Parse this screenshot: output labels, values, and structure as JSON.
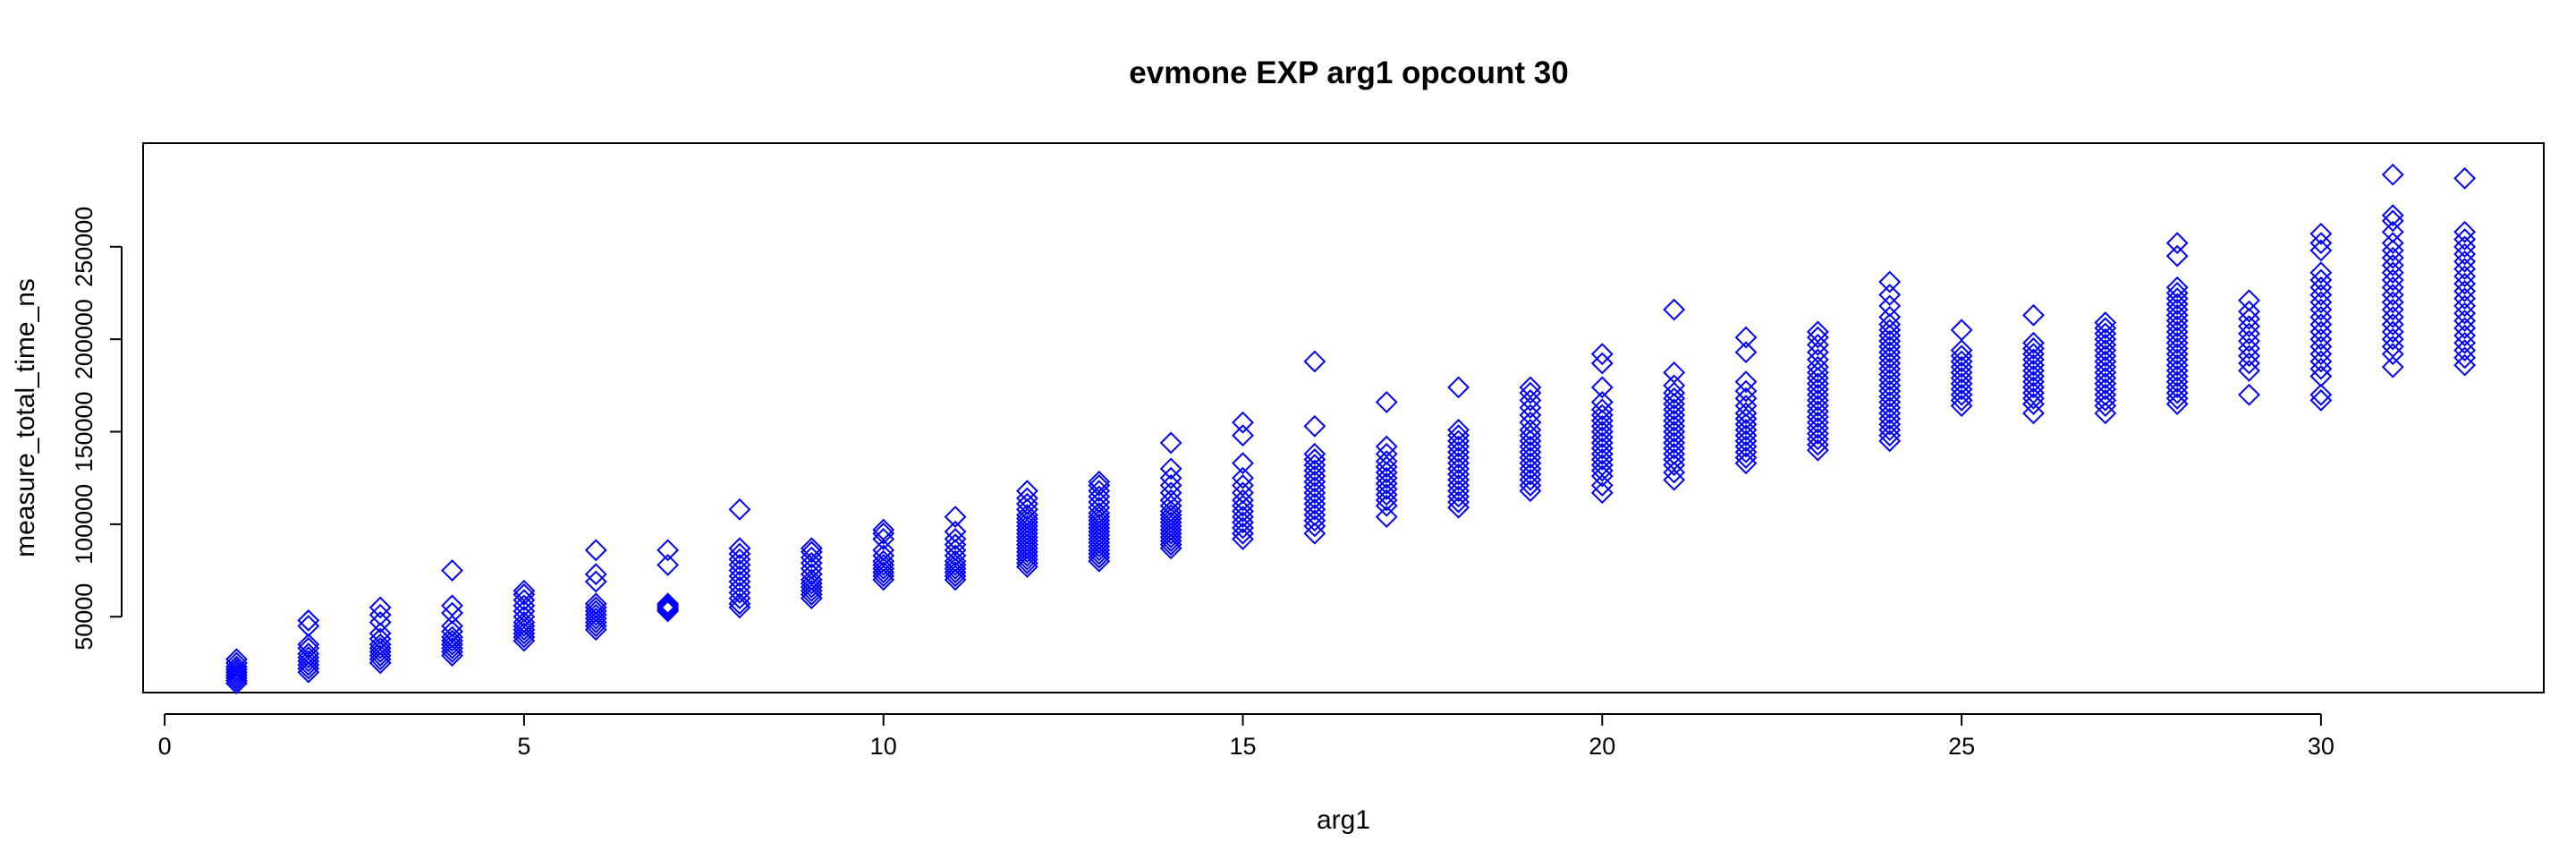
{
  "chart_data": {
    "type": "scatter",
    "title": "evmone EXP arg1 opcount 30",
    "xlabel": "arg1",
    "ylabel": "measure_total_time_ns",
    "xlim": [
      -0.3,
      33.1
    ],
    "ylim": [
      9000,
      306000
    ],
    "x_ticks": [
      0,
      5,
      10,
      15,
      20,
      25,
      30
    ],
    "y_ticks": [
      50000,
      100000,
      150000,
      200000,
      250000
    ],
    "x_tick_labels": [
      "0",
      "5",
      "10",
      "15",
      "20",
      "25",
      "30"
    ],
    "y_tick_labels": [
      "50000",
      "100000",
      "150000",
      "200000",
      "250000"
    ],
    "grid": false,
    "legend": "none",
    "marker": "diamond",
    "color": "#0000FF",
    "series": [
      {
        "x": [
          1,
          2,
          3,
          4,
          5,
          6,
          7,
          8,
          9,
          10,
          11,
          12,
          13,
          14,
          15,
          16,
          17,
          18,
          19,
          20,
          21,
          22,
          23,
          24,
          25,
          26,
          27,
          28,
          29,
          30,
          31,
          32
        ],
        "points": [
          {
            "x": 1,
            "y": [
              14000,
              15500,
              17000,
              18500,
              20000,
              21500,
              23000,
              25000,
              27000
            ]
          },
          {
            "x": 2,
            "y": [
              20000,
              22000,
              24000,
              26000,
              28000,
              30000,
              33000,
              35000,
              45000,
              48000
            ]
          },
          {
            "x": 3,
            "y": [
              25000,
              27000,
              29000,
              31000,
              33000,
              35000,
              38000,
              41000,
              47000,
              51000,
              55000
            ]
          },
          {
            "x": 4,
            "y": [
              29000,
              31000,
              33000,
              35000,
              37000,
              39000,
              42000,
              45000,
              52000,
              56000,
              75000
            ]
          },
          {
            "x": 5,
            "y": [
              37000,
              39000,
              41000,
              43000,
              45000,
              47000,
              50000,
              53000,
              56000,
              59000,
              62000,
              64000
            ]
          },
          {
            "x": 6,
            "y": [
              43000,
              45000,
              47000,
              49000,
              51000,
              53000,
              55000,
              57000,
              69000,
              73000,
              86000
            ]
          },
          {
            "x": 7,
            "y": [
              53000,
              54000,
              55000,
              56000,
              57000,
              78000,
              86000
            ]
          },
          {
            "x": 8,
            "y": [
              55000,
              57000,
              60000,
              63000,
              66000,
              69000,
              72000,
              75000,
              78000,
              81000,
              84000,
              87000,
              108000
            ]
          },
          {
            "x": 9,
            "y": [
              60000,
              62000,
              64000,
              66000,
              68000,
              70000,
              73000,
              76000,
              79000,
              82000,
              85000,
              87000
            ]
          },
          {
            "x": 10,
            "y": [
              70000,
              72000,
              74000,
              76000,
              78000,
              80000,
              83000,
              86000,
              92000,
              95000,
              97000
            ]
          },
          {
            "x": 11,
            "y": [
              70000,
              72000,
              74000,
              76000,
              78000,
              80000,
              83000,
              86000,
              89000,
              92000,
              96000,
              104000
            ]
          },
          {
            "x": 12,
            "y": [
              77000,
              79000,
              81000,
              83000,
              85000,
              87000,
              89000,
              91000,
              93000,
              95000,
              97000,
              99000,
              101000,
              103000,
              105000,
              108000,
              111000,
              114000,
              118000
            ]
          },
          {
            "x": 13,
            "y": [
              80000,
              82000,
              84000,
              86000,
              88000,
              90000,
              92000,
              94000,
              96000,
              98000,
              100000,
              102000,
              104000,
              106000,
              109000,
              112000,
              115000,
              118000,
              121000,
              123000
            ]
          },
          {
            "x": 14,
            "y": [
              87000,
              89000,
              91000,
              93000,
              95000,
              97000,
              99000,
              101000,
              103000,
              105000,
              107000,
              110000,
              113000,
              117000,
              121000,
              125000,
              130000,
              144000
            ]
          },
          {
            "x": 15,
            "y": [
              92000,
              95000,
              98000,
              101000,
              104000,
              107000,
              110000,
              113000,
              117000,
              121000,
              125000,
              133000,
              148000,
              155000
            ]
          },
          {
            "x": 16,
            "y": [
              95000,
              99000,
              102000,
              105000,
              108000,
              111000,
              114000,
              117000,
              120000,
              123000,
              126000,
              129000,
              132000,
              135000,
              138000,
              153000,
              188000
            ]
          },
          {
            "x": 17,
            "y": [
              104000,
              110000,
              113000,
              116000,
              119000,
              122000,
              125000,
              128000,
              131000,
              134000,
              138000,
              142000,
              166000
            ]
          },
          {
            "x": 18,
            "y": [
              109000,
              112000,
              115000,
              118000,
              121000,
              124000,
              127000,
              130000,
              133000,
              136000,
              139000,
              142000,
              145000,
              148000,
              151000,
              174000
            ]
          },
          {
            "x": 19,
            "y": [
              118000,
              121000,
              124000,
              127000,
              130000,
              133000,
              136000,
              139000,
              142000,
              145000,
              148000,
              151000,
              155000,
              159000,
              163000,
              167000,
              171000,
              174000
            ]
          },
          {
            "x": 20,
            "y": [
              117000,
              121000,
              126000,
              129000,
              132000,
              135000,
              138000,
              141000,
              144000,
              147000,
              150000,
              153000,
              156000,
              159000,
              162000,
              166000,
              174000,
              187000,
              192000
            ]
          },
          {
            "x": 21,
            "y": [
              124000,
              128000,
              132000,
              135000,
              138000,
              141000,
              144000,
              147000,
              150000,
              153000,
              156000,
              159000,
              162000,
              165000,
              168000,
              171000,
              175000,
              182000,
              216000
            ]
          },
          {
            "x": 22,
            "y": [
              133000,
              136000,
              139000,
              142000,
              145000,
              148000,
              151000,
              154000,
              157000,
              160000,
              164000,
              168000,
              172000,
              177000,
              193000,
              201000
            ]
          },
          {
            "x": 23,
            "y": [
              140000,
              143000,
              146000,
              149000,
              152000,
              155000,
              158000,
              161000,
              164000,
              167000,
              170000,
              173000,
              176000,
              179000,
              182000,
              185000,
              189000,
              193000,
              197000,
              201000,
              204000
            ]
          },
          {
            "x": 24,
            "y": [
              145000,
              148000,
              151000,
              154000,
              157000,
              160000,
              163000,
              166000,
              169000,
              172000,
              175000,
              178000,
              181000,
              184000,
              187000,
              190000,
              193000,
              196000,
              199000,
              202000,
              205000,
              208000,
              212000,
              218000,
              224000,
              231000
            ]
          },
          {
            "x": 25,
            "y": [
              164000,
              167000,
              170000,
              173000,
              176000,
              179000,
              182000,
              185000,
              188000,
              191000,
              194000,
              205000
            ]
          },
          {
            "x": 26,
            "y": [
              160000,
              165000,
              168000,
              171000,
              174000,
              177000,
              180000,
              183000,
              186000,
              189000,
              192000,
              195000,
              198000,
              213000
            ]
          },
          {
            "x": 27,
            "y": [
              160000,
              164000,
              167000,
              170000,
              173000,
              176000,
              179000,
              182000,
              185000,
              188000,
              191000,
              194000,
              197000,
              200000,
              203000,
              206000,
              209000
            ]
          },
          {
            "x": 28,
            "y": [
              165000,
              168000,
              171000,
              174000,
              177000,
              180000,
              183000,
              186000,
              189000,
              192000,
              195000,
              198000,
              201000,
              204000,
              207000,
              210000,
              213000,
              216000,
              219000,
              222000,
              225000,
              228000,
              245000,
              252000
            ]
          },
          {
            "x": 29,
            "y": [
              170000,
              183000,
              187000,
              191000,
              195000,
              199000,
              203000,
              207000,
              211000,
              215000,
              221000
            ]
          },
          {
            "x": 30,
            "y": [
              167000,
              170000,
              180000,
              184000,
              188000,
              192000,
              196000,
              200000,
              204000,
              208000,
              212000,
              216000,
              220000,
              224000,
              228000,
              232000,
              236000,
              248000,
              252000,
              257000
            ]
          },
          {
            "x": 31,
            "y": [
              185000,
              192000,
              196000,
              200000,
              204000,
              208000,
              212000,
              216000,
              220000,
              224000,
              228000,
              232000,
              236000,
              240000,
              244000,
              248000,
              252000,
              258000,
              264000,
              267000,
              289000
            ]
          },
          {
            "x": 32,
            "y": [
              186000,
              190000,
              194000,
              198000,
              202000,
              206000,
              210000,
              214000,
              218000,
              222000,
              226000,
              230000,
              234000,
              238000,
              242000,
              246000,
              250000,
              254000,
              258000,
              287000
            ]
          }
        ]
      }
    ]
  }
}
